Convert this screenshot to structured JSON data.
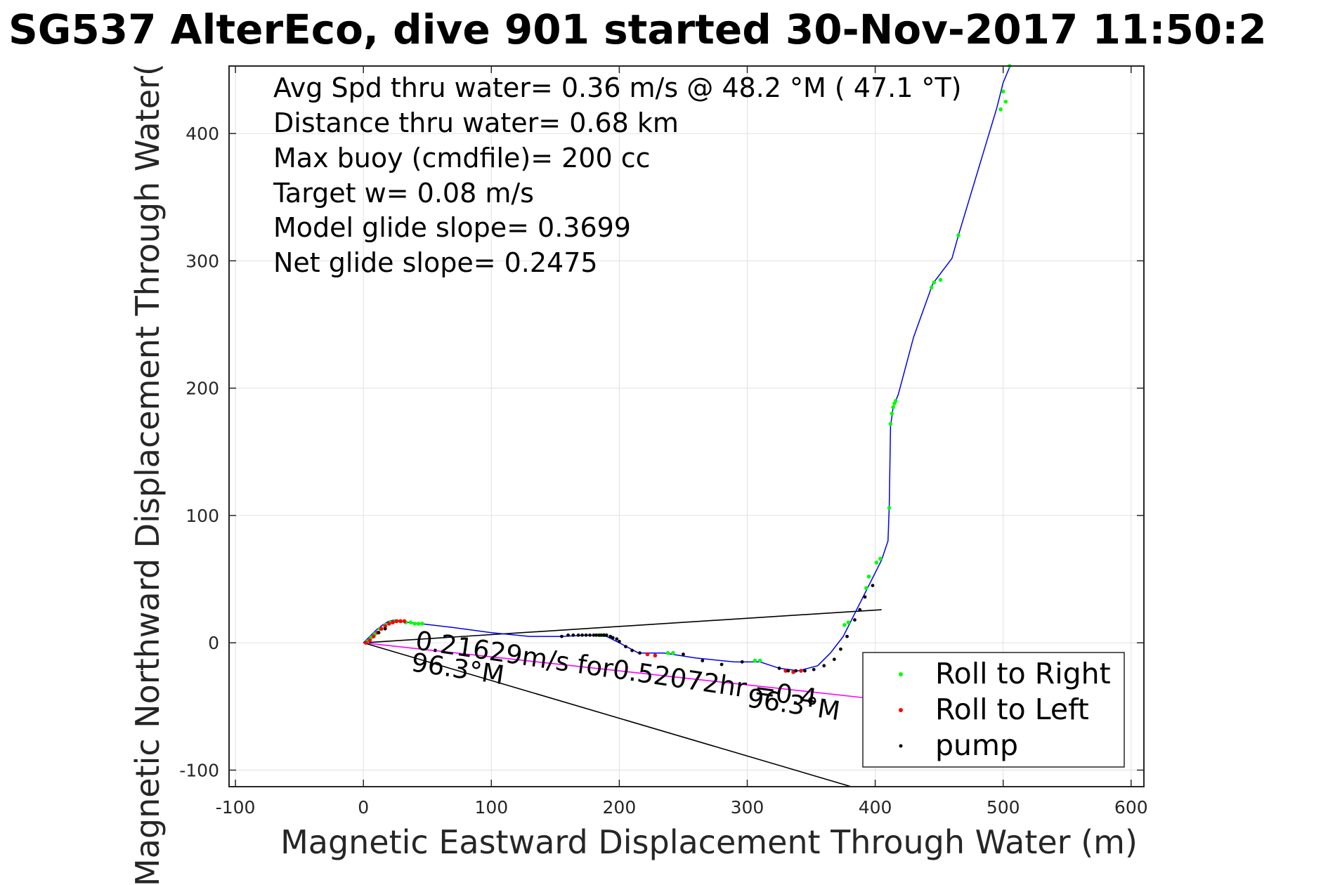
{
  "chart_data": {
    "type": "scatter",
    "title": "SG537 AlterEco, dive 901 started 30-Nov-2017 11:50:2",
    "xlabel": "Magnetic Eastward Displacement Through Water (m)",
    "ylabel": "Magnetic Northward Displacement Through Water(",
    "xlim": [
      -105,
      610
    ],
    "ylim": [
      -113,
      453
    ],
    "xticks": [
      "-100",
      "0",
      "100",
      "200",
      "300",
      "400",
      "500",
      "600"
    ],
    "xtick_values": [
      -100,
      0,
      100,
      200,
      300,
      400,
      500,
      600
    ],
    "yticks": [
      "-100",
      "0",
      "100",
      "200",
      "300",
      "400"
    ],
    "ytick_values": [
      -100,
      0,
      100,
      200,
      300,
      400
    ],
    "grid": true,
    "legend_position": "bottom-right",
    "stats": [
      "Avg Spd thru water=  0.36 m/s @  48.2 °M ( 47.1 °T)",
      "Distance thru water=  0.68 km",
      "Max buoy (cmdfile)= 200 cc",
      "Target w= 0.08 m/s",
      "Model glide slope= 0.3699",
      "Net glide slope= 0.2475"
    ],
    "annotations": {
      "vector_label": "0.21629m/s for0.52072hr =0.4",
      "heading_label_1": "96.3°M",
      "heading_label_2": "96.3°M"
    },
    "track": {
      "color": "#0000ee",
      "x": [
        0,
        5,
        10,
        15,
        20,
        25,
        30,
        35,
        45,
        70,
        100,
        130,
        155,
        175,
        190,
        200,
        215,
        235,
        260,
        290,
        310,
        325,
        340,
        355,
        365,
        375,
        385,
        395,
        405,
        410,
        411,
        412,
        414,
        418,
        430,
        445,
        460,
        465,
        480,
        495,
        500,
        505
      ],
      "y": [
        0,
        5,
        10,
        14,
        17,
        18,
        17,
        16,
        15,
        12,
        8,
        5,
        5,
        6,
        5,
        0,
        -8,
        -8,
        -12,
        -15,
        -15,
        -20,
        -22,
        -18,
        -8,
        5,
        25,
        45,
        65,
        80,
        108,
        170,
        185,
        195,
        240,
        282,
        302,
        320,
        370,
        420,
        440,
        452
      ]
    },
    "series": [
      {
        "name": "Roll to Right",
        "color": "#00ff00",
        "x": [
          3,
          6,
          9,
          13,
          17,
          21,
          25,
          29,
          33,
          37,
          40,
          43,
          46,
          185,
          188,
          238,
          242,
          306,
          310,
          376,
          379,
          393,
          395,
          401,
          404,
          411,
          412,
          413,
          414,
          415,
          416,
          444,
          446,
          451,
          465,
          498,
          500,
          502,
          505
        ],
        "y": [
          1,
          4,
          7,
          11,
          14,
          16,
          17,
          17,
          16,
          16,
          15,
          15,
          15,
          6,
          6,
          -8,
          -8,
          -14,
          -14,
          14,
          16,
          43,
          52,
          63,
          66,
          106,
          172,
          180,
          185,
          188,
          190,
          279,
          283,
          285,
          320,
          419,
          433,
          425,
          453
        ]
      },
      {
        "name": "Roll to Left",
        "color": "#ff0000",
        "x": [
          2,
          5,
          8,
          11,
          14,
          17,
          20,
          23,
          26,
          29,
          32,
          222,
          228,
          330,
          336,
          342
        ],
        "y": [
          0,
          2,
          5,
          8,
          11,
          13,
          15,
          16,
          17,
          17,
          17,
          -9,
          -10,
          -22,
          -23,
          -22
        ]
      },
      {
        "name": "pump",
        "color": "#000000",
        "x": [
          12,
          17,
          155,
          160,
          164,
          168,
          171,
          174,
          177,
          180,
          182,
          184,
          186,
          188,
          190,
          193,
          195,
          198,
          200,
          205,
          210,
          216,
          250,
          265,
          280,
          296,
          325,
          332,
          338,
          345,
          352,
          360,
          368,
          373,
          378,
          384,
          388,
          392,
          398
        ],
        "y": [
          8,
          11,
          5,
          6,
          6,
          6,
          6,
          6,
          6,
          6,
          6,
          6,
          6,
          6,
          6,
          5,
          4,
          3,
          1,
          -3,
          -6,
          -8,
          -9,
          -14,
          -17,
          -15,
          -20,
          -22,
          -22,
          -22,
          -21,
          -18,
          -13,
          -5,
          5,
          18,
          26,
          36,
          45
        ]
      }
    ],
    "vector_lines": [
      {
        "color": "#000000",
        "x": [
          0,
          405
        ],
        "y": [
          0,
          26
        ]
      },
      {
        "color": "#ff00ff",
        "x": [
          0,
          390
        ],
        "y": [
          0,
          -43
        ]
      },
      {
        "color": "#000000",
        "x": [
          0,
          388
        ],
        "y": [
          0,
          -115
        ]
      }
    ]
  }
}
